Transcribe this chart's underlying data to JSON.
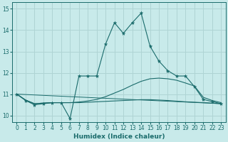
{
  "xlabel": "Humidex (Indice chaleur)",
  "ylabel": "",
  "xlim": [
    -0.5,
    23.5
  ],
  "ylim": [
    9.7,
    15.3
  ],
  "background_color": "#c8eaea",
  "grid_color": "#afd4d4",
  "line_color": "#1a6b6b",
  "spine_color": "#1a6b6b",
  "xticks": [
    0,
    1,
    2,
    3,
    4,
    5,
    6,
    7,
    8,
    9,
    10,
    11,
    12,
    13,
    14,
    15,
    16,
    17,
    18,
    19,
    20,
    21,
    22,
    23
  ],
  "yticks": [
    10,
    11,
    12,
    13,
    14,
    15
  ],
  "line1_x": [
    0,
    1,
    2,
    3,
    4,
    5,
    6,
    7,
    8,
    9,
    10,
    11,
    12,
    13,
    14,
    15,
    16,
    17,
    18,
    19,
    20,
    21,
    22,
    23
  ],
  "line1_y": [
    11.0,
    10.7,
    10.5,
    10.55,
    10.6,
    10.6,
    9.85,
    11.85,
    11.85,
    11.85,
    13.35,
    14.35,
    13.85,
    14.35,
    14.8,
    13.25,
    12.55,
    12.1,
    11.85,
    11.85,
    11.35,
    10.75,
    10.65,
    10.55
  ],
  "line2_x": [
    0,
    1,
    2,
    3,
    4,
    5,
    6,
    7,
    8,
    9,
    10,
    11,
    12,
    13,
    14,
    15,
    16,
    17,
    18,
    19,
    20,
    21,
    22,
    23
  ],
  "line2_y": [
    11.0,
    10.72,
    10.55,
    10.58,
    10.6,
    10.6,
    10.6,
    10.63,
    10.68,
    10.75,
    10.88,
    11.05,
    11.22,
    11.42,
    11.6,
    11.72,
    11.75,
    11.72,
    11.65,
    11.52,
    11.38,
    10.85,
    10.7,
    10.6
  ],
  "line3_x": [
    0,
    1,
    2,
    3,
    4,
    5,
    6,
    7,
    8,
    9,
    10,
    11,
    12,
    13,
    14,
    15,
    16,
    17,
    18,
    19,
    20,
    21,
    22,
    23
  ],
  "line3_y": [
    11.0,
    10.72,
    10.55,
    10.58,
    10.6,
    10.6,
    10.6,
    10.6,
    10.62,
    10.64,
    10.66,
    10.68,
    10.7,
    10.72,
    10.74,
    10.74,
    10.72,
    10.7,
    10.67,
    10.64,
    10.62,
    10.6,
    10.58,
    10.55
  ],
  "line4_x": [
    0,
    23
  ],
  "line4_y": [
    11.0,
    10.55
  ]
}
